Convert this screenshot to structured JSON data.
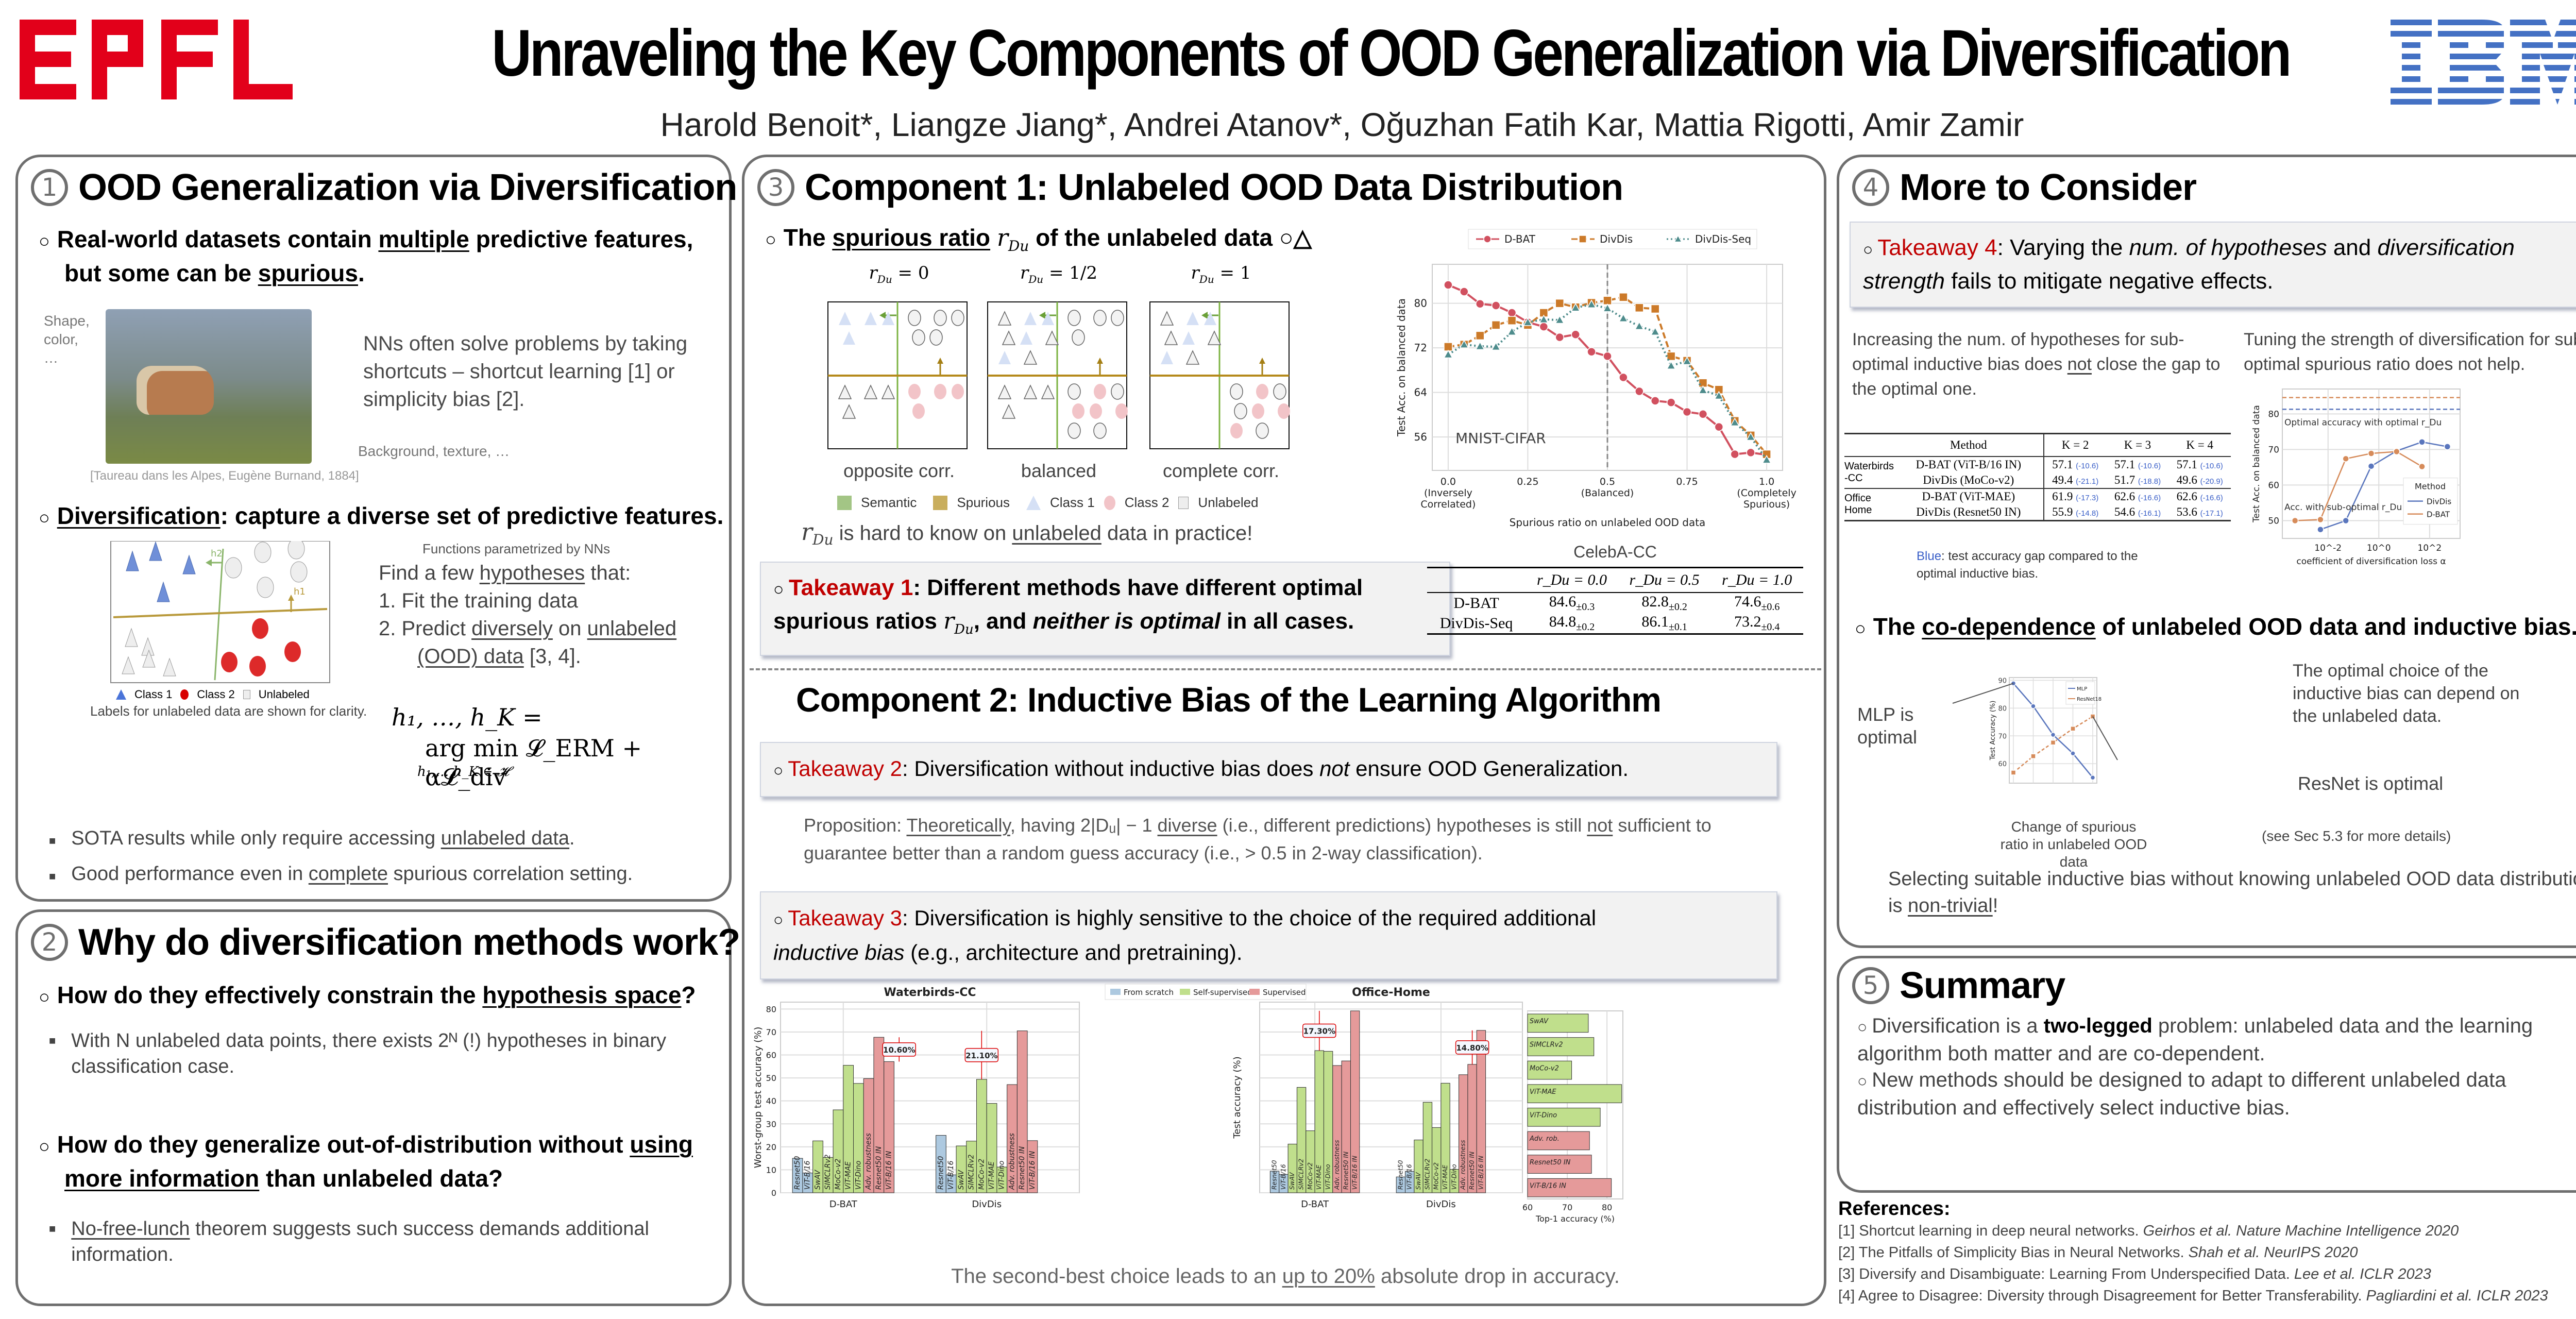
{
  "header": {
    "title": "Unraveling the Key Components of OOD Generalization via Diversification",
    "authors": "Harold Benoit*, Liangze Jiang*, Andrei Atanov*, Oğuzhan Fatih Kar, Mattia Rigotti, Amir Zamir",
    "logo_left": "EPFL",
    "logo_right": "IBM",
    "colors": {
      "epfl_red": "#e2001a",
      "ibm_blue": "#4471c4",
      "takeaway_red": "#c00000",
      "panel_border": "#6f6f6f"
    }
  },
  "section1": {
    "number": "1",
    "title": "OOD Generalization via Diversification",
    "bullet1_a": "Real-world datasets contain ",
    "bullet1_u1": "multiple",
    "bullet1_b": " predictive features,",
    "bullet1_c": "but some can be ",
    "bullet1_u2": "spurious",
    "bullet1_d": ".",
    "image_label_left": "Shape, color, …",
    "image_label_right": "Background, texture, …",
    "image_caption": "[Taureau dans les Alpes, Eugène Burnand, 1884]",
    "shortcut_text": "NNs often solve problems by taking shortcuts – shortcut learning [1] or simplicity bias [2].",
    "bullet2_u": "Diversification",
    "bullet2_rest": ": capture a diverse set of predictive features.",
    "diagram_legend": [
      "Class 1",
      "Class 2",
      "Unlabeled"
    ],
    "diagram_h1": "h1",
    "diagram_h2": "h2",
    "diagram_note": "Labels for unlabeled data are shown for clarity.",
    "functions_note": "Functions parametrized by NNs",
    "find_a": "Find a few ",
    "find_u": "hypotheses",
    "find_b": " that:",
    "step1": "1.   Fit the training data",
    "step2_a": "2.   Predict ",
    "step2_u1": "diversely",
    "step2_b": " on ",
    "step2_u2": "unlabeled",
    "step2_u3": "(OOD) data",
    "step2_c": " [3, 4].",
    "formula_line1": "h₁, …, h_K =",
    "formula_line2": "arg min 𝓛_ERM + α𝓛_div",
    "formula_sub": "h₁,…,h_K ∈ 𝓗",
    "sub1_a": "SOTA results while only require accessing ",
    "sub1_u": "unlabeled data",
    "sub1_b": ".",
    "sub2_a": "Good performance even in ",
    "sub2_u": "complete",
    "sub2_b": " spurious correlation setting."
  },
  "section2": {
    "number": "2",
    "title": "Why do diversification methods work?",
    "q1_a": "How do they effectively constrain the ",
    "q1_u": "hypothesis space",
    "q1_b": "?",
    "a1": "With N unlabeled data points, there exists 2ᴺ (!) hypotheses in binary classification case.",
    "q2_a": "How do they generalize out-of-distribution without ",
    "q2_u1": "using",
    "q2_u2": "more information",
    "q2_b": " than unlabeled data?",
    "a2_u": "No-free-lunch",
    "a2_rest": " theorem suggests such success demands additional information."
  },
  "section3": {
    "number": "3",
    "title": "Component 1: Unlabeled OOD Data Distribution",
    "bullet_a": "The ",
    "bullet_u": "spurious ratio",
    "bullet_math": "r",
    "bullet_sub": "Du",
    "bullet_b": " of the unlabeled data ○△",
    "panels": [
      {
        "ratio": "= 0",
        "caption": "opposite corr."
      },
      {
        "ratio": "= 1/2",
        "caption": "balanced"
      },
      {
        "ratio": "= 1",
        "caption": "complete corr."
      }
    ],
    "legend": [
      "Semantic",
      "Spurious",
      "Class 1",
      "Class 2",
      "Unlabeled"
    ],
    "hard_a": " is hard to know on ",
    "hard_u": "unlabeled",
    "hard_b": " data in practice!",
    "takeaway1_label": "Takeaway 1",
    "takeaway1_a": ": Different methods have different optimal spurious ratios ",
    "takeaway1_b": ", and ",
    "takeaway1_it": "neither is optimal",
    "takeaway1_c": " in all cases.",
    "celeba": {
      "title": "CelebA-CC",
      "headers": [
        "",
        "r_Du = 0.0",
        "r_Du = 0.5",
        "r_Du = 1.0"
      ],
      "rows": [
        {
          "method": "D-BAT",
          "values": [
            "84.6",
            "82.8",
            "74.6"
          ],
          "std": [
            "±0.3",
            "±0.2",
            "±0.6"
          ]
        },
        {
          "method": "DivDis-Seq",
          "values": [
            "84.8",
            "86.1",
            "73.2"
          ],
          "std": [
            "±0.2",
            "±0.1",
            "±0.4"
          ]
        }
      ]
    }
  },
  "component2": {
    "title": "Component 2: Inductive Bias of the Learning Algorithm",
    "takeaway2_label": "Takeaway 2",
    "takeaway2_a": ": Diversification without inductive bias does ",
    "takeaway2_it": "not",
    "takeaway2_b": " ensure OOD Generalization.",
    "prop_label": "Proposition: ",
    "prop_u1": "Theoretically",
    "prop_a": ", having 2|Dᵤ| − 1 ",
    "prop_u2": "diverse",
    "prop_b": " (i.e., different predictions) hypotheses is still ",
    "prop_u3": "not",
    "prop_c": " sufficient to guarantee better than a random guess accuracy (i.e., > 0.5 in 2-way classification).",
    "takeaway3_label": "Takeaway 3",
    "takeaway3_a": ": Diversification is highly sensitive to the choice of the required additional ",
    "takeaway3_it": "inductive bias",
    "takeaway3_b": " (e.g., architecture and pretraining).",
    "bottom_a": "The second-best choice leads to an ",
    "bottom_u": "up to 20%",
    "bottom_b": " absolute drop in accuracy."
  },
  "section4": {
    "number": "4",
    "title": "More to Consider",
    "takeaway4_label": "Takeaway 4",
    "takeaway4_a": ": Varying the ",
    "takeaway4_it1": "num. of hypotheses",
    "takeaway4_b": " and ",
    "takeaway4_it2": "diversification strength",
    "takeaway4_c": " fails to mitigate negative effects.",
    "left_text_a": "Increasing the num. of hypotheses for sub-optimal inductive bias does ",
    "left_text_u": "not",
    "left_text_b": " close the gap to the optimal one.",
    "right_text": "Tuning the strength of diversification for sub-optimal spurious ratio does not help.",
    "ktable": {
      "headers": [
        "Method",
        "K = 2",
        "K = 3",
        "K = 4"
      ],
      "groups": [
        {
          "dataset": "Waterbirds -CC",
          "rows": [
            {
              "method": "D-BAT (ViT-B/16 IN)",
              "values": [
                "57.1",
                "57.1",
                "57.1"
              ],
              "gaps": [
                "(-10.6)",
                "(-10.6)",
                "(-10.6)"
              ]
            },
            {
              "method": "DivDis (MoCo-v2)",
              "values": [
                "49.4",
                "51.7",
                "49.6"
              ],
              "gaps": [
                "(-21.1)",
                "(-18.8)",
                "(-20.9)"
              ]
            }
          ]
        },
        {
          "dataset": "Office Home",
          "rows": [
            {
              "method": "D-BAT (ViT-MAE)",
              "values": [
                "61.9",
                "62.6",
                "62.6"
              ],
              "gaps": [
                "(-17.3)",
                "(-16.6)",
                "(-16.6)"
              ]
            },
            {
              "method": "DivDis (Resnet50 IN)",
              "values": [
                "55.9",
                "54.6",
                "53.6"
              ],
              "gaps": [
                "(-14.8)",
                "(-16.1)",
                "(-17.1)"
              ]
            }
          ]
        }
      ]
    },
    "blue_note_label": "Blue",
    "blue_note_rest": ": test accuracy gap compared to the optimal inductive bias.",
    "codep_a": "The ",
    "codep_u": "co-dependence",
    "codep_b": " of unlabeled OOD data and inductive bias.",
    "mlp_note": "MLP is optimal",
    "resnet_note": "ResNet is optimal",
    "optimal_choice_note": "The optimal choice of the inductive bias can depend on the unlabeled data.",
    "codep_xlabel": "Change of spurious ratio in unlabeled OOD data",
    "see_sec": "(see Sec 5.3 for more details)",
    "selecting_a": "Selecting suitable inductive bias without knowing unlabeled OOD data distribution is ",
    "selecting_u": "non-trivial",
    "selecting_b": "!"
  },
  "section5": {
    "number": "5",
    "title": "Summary",
    "s1_a": "Diversification is a ",
    "s1_b": "two-legged",
    "s1_c": " problem: unlabeled data and the learning algorithm both matter and are co-dependent.",
    "s2": "New methods should be designed to adapt to different unlabeled data distribution and effectively select inductive bias."
  },
  "references": {
    "title": "References:",
    "items": [
      {
        "text": "[1] Shortcut learning in deep neural networks. ",
        "venue": "Geirhos et al. Nature Machine Intelligence 2020"
      },
      {
        "text": "[2] The Pitfalls of Simplicity Bias in Neural Networks. ",
        "venue": "Shah et al. NeurIPS 2020"
      },
      {
        "text": "[3] Diversify and Disambiguate: Learning From Underspecified Data. ",
        "venue": "Lee et al. ICLR 2023"
      },
      {
        "text": "[4] Agree to Disagree: Diversity through Disagreement for Better Transferability. ",
        "venue": "Pagliardini et al. ICLR 2023"
      }
    ]
  },
  "chart_data": [
    {
      "id": "mnist_cifar",
      "type": "line",
      "title": "",
      "annotation": "MNIST-CIFAR",
      "xlabel": "Spurious ratio on unlabeled OOD data",
      "ylabel": "Test Acc. on balanced data",
      "x": [
        0.0,
        0.05,
        0.1,
        0.15,
        0.2,
        0.25,
        0.3,
        0.35,
        0.4,
        0.45,
        0.5,
        0.55,
        0.6,
        0.65,
        0.7,
        0.75,
        0.8,
        0.85,
        0.9,
        0.95,
        1.0
      ],
      "xticks": [
        0.0,
        0.25,
        0.5,
        0.75,
        1.0
      ],
      "xtick_labels": [
        "0.0\n(Inversely\nCorrelated)",
        "0.25",
        "0.5\n(Balanced)",
        "0.75",
        "1.0\n(Completely\nSpurious)"
      ],
      "yticks": [
        56,
        64,
        72,
        80
      ],
      "xlim": [
        -0.05,
        1.05
      ],
      "ylim": [
        50,
        87
      ],
      "vline": 0.5,
      "legend": "top",
      "series": [
        {
          "name": "D-BAT",
          "color": "#d1505f",
          "marker": "circle",
          "dash": "solid",
          "values": [
            83.3,
            82.1,
            79.9,
            79.6,
            78.3,
            76.6,
            75.8,
            73.9,
            74.4,
            71.3,
            70.5,
            66.7,
            64.2,
            62.5,
            62.2,
            60.5,
            60.1,
            57.8,
            52.9,
            53.2,
            52.8
          ]
        },
        {
          "name": "DivDis",
          "color": "#cc7a29",
          "marker": "square",
          "dash": "dashed",
          "values": [
            72.2,
            72.6,
            74.2,
            76.1,
            76.9,
            76.1,
            78.3,
            80.0,
            79.3,
            80.1,
            80.5,
            81.1,
            79.2,
            79.0,
            70.5,
            69.7,
            65.7,
            64.5,
            58.9,
            56.3,
            52.9
          ]
        },
        {
          "name": "DivDis-Seq",
          "color": "#4e8c8c",
          "marker": "triangle",
          "dash": "dotted",
          "values": [
            70.8,
            72.6,
            72.3,
            72.2,
            74.9,
            76.6,
            77.1,
            77.0,
            79.2,
            79.8,
            79.1,
            77.3,
            75.9,
            74.9,
            68.8,
            69.6,
            64.4,
            63.4,
            58.6,
            56.0,
            51.9
          ]
        }
      ]
    },
    {
      "id": "waterbirds",
      "type": "bar",
      "title": "Waterbirds-CC",
      "ylabel": "Worst-group test accuracy (%)",
      "groups": [
        "D-BAT",
        "DivDis"
      ],
      "categories": [
        "Resnet50",
        "ViT-B/16",
        "SwAV",
        "SIMCLRv2",
        "MoCo-v2",
        "ViT-MAE",
        "ViT-Dino",
        "Adv. robustness",
        "Resnet50 IN",
        "ViT-B/16 IN"
      ],
      "category_type": [
        "From scratch",
        "From scratch",
        "Self-supervised",
        "Self-supervised",
        "Self-supervised",
        "Self-supervised",
        "Self-supervised",
        "Supervised",
        "Supervised",
        "Supervised"
      ],
      "series": [
        {
          "name": "D-BAT",
          "values": [
            15.0,
            8.6,
            22.6,
            15.4,
            36.1,
            55.5,
            47.6,
            49.7,
            67.7,
            57.1
          ]
        },
        {
          "name": "DivDis",
          "values": [
            25.0,
            7.8,
            20.4,
            22.5,
            49.4,
            38.9,
            11.2,
            47.1,
            70.5,
            22.7
          ]
        }
      ],
      "annotations": [
        {
          "group": "D-BAT",
          "text": "10.60%"
        },
        {
          "group": "DivDis",
          "text": "21.10%"
        }
      ],
      "yticks": [
        0,
        10,
        20,
        30,
        40,
        50,
        60,
        70,
        80
      ],
      "ylim": [
        0,
        83
      ],
      "legend_entries": [
        "From scratch",
        "Self-supervised",
        "Supervised"
      ],
      "legend_colors": [
        "#adc9e0",
        "#c0df8c",
        "#e59a9a"
      ],
      "legend": "top"
    },
    {
      "id": "officehome",
      "type": "bar",
      "title": "Office-Home",
      "ylabel": "Test accuracy (%)",
      "groups": [
        "D-BAT",
        "DivDis"
      ],
      "categories": [
        "Resnet50",
        "ViT-B/16",
        "SwAV",
        "SIMCLRv2",
        "MoCo-v2",
        "ViT-MAE",
        "ViT-Dino",
        "Adv. robustness",
        "Resnet50 IN",
        "ViT-B/16 IN"
      ],
      "series": [
        {
          "name": "D-BAT",
          "values": [
            9.4,
            8.0,
            21.2,
            45.9,
            27.0,
            61.9,
            61.6,
            55.4,
            57.4,
            79.2
          ]
        },
        {
          "name": "DivDis",
          "values": [
            6.9,
            9.3,
            23.0,
            39.4,
            28.4,
            47.7,
            10.2,
            51.4,
            55.9,
            70.7
          ]
        }
      ],
      "annotations": [
        {
          "group": "D-BAT",
          "text": "17.30%"
        },
        {
          "group": "DivDis",
          "text": "14.80%"
        }
      ],
      "ylim": [
        0,
        83
      ]
    },
    {
      "id": "top1",
      "type": "bar",
      "orientation": "horizontal",
      "xlabel": "Top-1 accuracy (%)",
      "categories": [
        "SwAV",
        "SIMCLRv2",
        "MoCo-v2",
        "ViT-MAE",
        "ViT-Dino",
        "Adv. rob.",
        "Resnet50 IN",
        "ViT-B/16 IN"
      ],
      "category_type": [
        "Self-supervised",
        "Self-supervised",
        "Self-supervised",
        "Self-supervised",
        "Self-supervised",
        "Supervised",
        "Supervised",
        "Supervised"
      ],
      "values": [
        75.3,
        76.7,
        71.1,
        83.7,
        78.3,
        75.6,
        76.1,
        81.1
      ],
      "xticks": [
        60,
        70,
        80
      ],
      "xlim": [
        60,
        84
      ]
    },
    {
      "id": "alpha",
      "type": "line",
      "xlabel": "coefficient of diversification loss α",
      "ylabel": "Test Acc. on balanced data",
      "xscale": "log",
      "xtick_labels": [
        "10^-2",
        "10^0",
        "10^2"
      ],
      "yticks": [
        50,
        60,
        70,
        80
      ],
      "ylim": [
        45,
        87
      ],
      "legend_title": "Method",
      "annotations": [
        "Optimal accuracy with optimal r_Du",
        "Acc. with sub-optimal r_Du"
      ],
      "series": [
        {
          "name": "DivDis",
          "color": "#5a76bd",
          "log10_x": [
            -2.3,
            -1.3,
            -0.3,
            0.7,
            1.7,
            2.7
          ],
          "values": [
            47.5,
            50.0,
            65.3,
            69.6,
            72.1,
            70.8
          ],
          "optimal": 81.3
        },
        {
          "name": "D-BAT",
          "color": "#d68b5a",
          "log10_x": [
            -3.3,
            -2.3,
            -1.3,
            -0.3,
            0.7,
            1.7
          ],
          "values": [
            50.0,
            50.3,
            67.4,
            68.9,
            69.4,
            65.2
          ],
          "optimal": 84.6
        }
      ]
    },
    {
      "id": "codependence",
      "type": "line",
      "ylabel": "Test Accuracy (%)",
      "xlabel": "",
      "x": [
        0,
        1,
        2,
        3,
        4
      ],
      "yticks": [
        60,
        70,
        80,
        90
      ],
      "ylim": [
        53,
        91
      ],
      "series": [
        {
          "name": "MLP",
          "color": "#5a76bd",
          "marker": "circle",
          "values": [
            88.9,
            80.7,
            70.4,
            63.7,
            55.0
          ]
        },
        {
          "name": "ResNet18",
          "color": "#d68b5a",
          "marker": "square",
          "values": [
            56.8,
            62.7,
            67.6,
            72.6,
            77.0
          ]
        }
      ]
    }
  ]
}
